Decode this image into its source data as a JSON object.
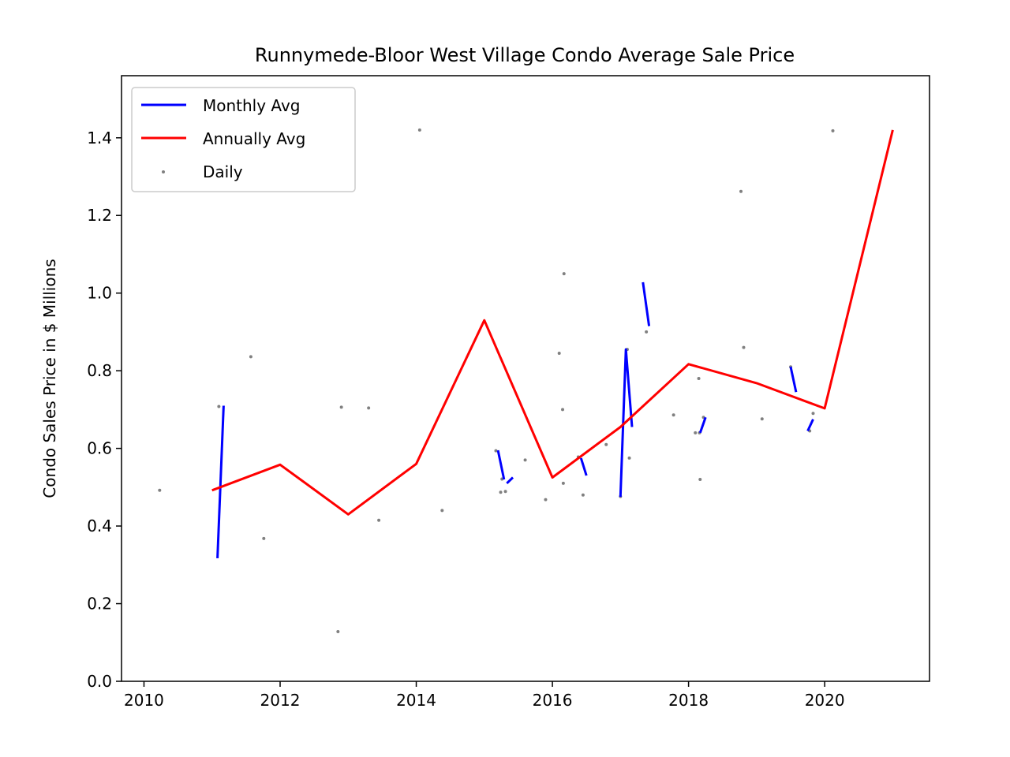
{
  "chart_data": {
    "type": "line",
    "title": "Runnymede-Bloor West Village Condo Average Sale Price",
    "xlabel": "",
    "ylabel": "Condo Sales Price in $ Millions",
    "xlim": [
      2009.67,
      2021.54
    ],
    "ylim": [
      0.0,
      1.56
    ],
    "xticks": [
      2010,
      2012,
      2014,
      2016,
      2018,
      2020
    ],
    "yticks": [
      0.0,
      0.2,
      0.4,
      0.6,
      0.8,
      1.0,
      1.2,
      1.4
    ],
    "grid": false,
    "legend_position": "upper-left",
    "series": [
      {
        "name": "Monthly Avg",
        "kind": "line",
        "color": "#0000ff",
        "segments": [
          [
            [
              2011.08,
              0.317
            ],
            [
              2011.17,
              0.71
            ]
          ],
          [
            [
              2015.2,
              0.595
            ],
            [
              2015.29,
              0.52
            ]
          ],
          [
            [
              2015.33,
              0.51
            ],
            [
              2015.42,
              0.525
            ]
          ],
          [
            [
              2016.42,
              0.575
            ],
            [
              2016.5,
              0.53
            ]
          ],
          [
            [
              2017.0,
              0.475
            ],
            [
              2017.08,
              0.855
            ],
            [
              2017.17,
              0.655
            ]
          ],
          [
            [
              2017.33,
              1.028
            ],
            [
              2017.42,
              0.915
            ]
          ],
          [
            [
              2018.17,
              0.64
            ],
            [
              2018.25,
              0.68
            ]
          ],
          [
            [
              2019.5,
              0.81
            ],
            [
              2019.58,
              0.745
            ]
          ],
          [
            [
              2019.75,
              0.645
            ],
            [
              2019.83,
              0.675
            ]
          ]
        ]
      },
      {
        "name": "Annually Avg",
        "kind": "line",
        "color": "#ff0000",
        "x": [
          2011,
          2012,
          2013,
          2014,
          2015,
          2016,
          2017,
          2018,
          2019,
          2020,
          2021
        ],
        "y": [
          0.492,
          0.558,
          0.43,
          0.56,
          0.93,
          0.525,
          0.655,
          0.817,
          0.768,
          0.703,
          1.42
        ]
      },
      {
        "name": "Daily",
        "kind": "scatter",
        "color": "#808080",
        "x": [
          2010.23,
          2011.1,
          2011.57,
          2011.76,
          2012.85,
          2012.9,
          2013.3,
          2013.45,
          2014.05,
          2014.38,
          2015.17,
          2015.24,
          2015.26,
          2015.31,
          2015.6,
          2015.9,
          2016.1,
          2016.15,
          2016.16,
          2016.17,
          2016.38,
          2016.45,
          2016.79,
          2017.0,
          2017.1,
          2017.13,
          2017.38,
          2017.78,
          2018.1,
          2018.15,
          2018.16,
          2018.17,
          2018.22,
          2018.77,
          2018.81,
          2019.08,
          2019.5,
          2019.78,
          2019.83,
          2020.12
        ],
        "y": [
          0.492,
          0.708,
          0.836,
          0.368,
          0.128,
          0.706,
          0.704,
          0.415,
          1.42,
          0.44,
          0.594,
          0.487,
          0.521,
          0.489,
          0.57,
          0.468,
          0.845,
          0.7,
          0.51,
          1.05,
          0.578,
          0.48,
          0.61,
          0.476,
          0.855,
          0.575,
          0.9,
          0.686,
          0.64,
          0.78,
          0.64,
          0.52,
          0.68,
          1.262,
          0.86,
          0.676,
          0.81,
          0.645,
          0.69,
          1.418
        ]
      }
    ]
  }
}
